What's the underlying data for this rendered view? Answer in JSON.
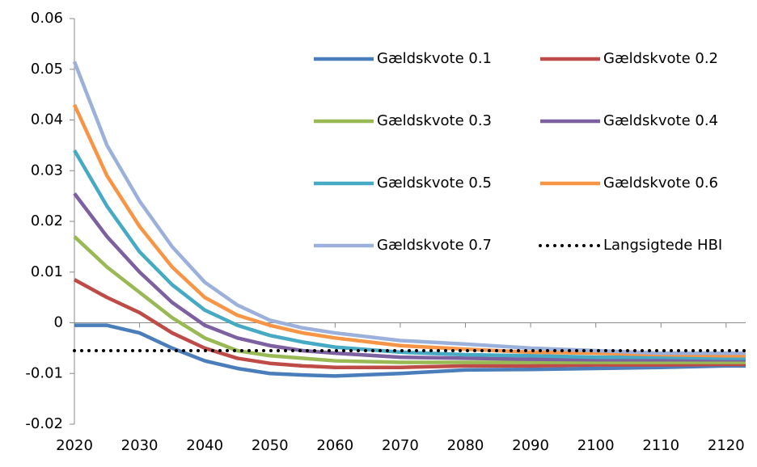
{
  "chart_data": {
    "type": "line",
    "x": [
      2020,
      2025,
      2030,
      2035,
      2040,
      2045,
      2050,
      2055,
      2060,
      2070,
      2080,
      2090,
      2100,
      2110,
      2120,
      2123
    ],
    "xlim": [
      2020,
      2123
    ],
    "xticks": [
      2020,
      2030,
      2040,
      2050,
      2060,
      2070,
      2080,
      2090,
      2100,
      2110,
      2120
    ],
    "ylim": [
      -0.02,
      0.06
    ],
    "yticks": [
      -0.02,
      -0.01,
      0,
      0.01,
      0.02,
      0.03,
      0.04,
      0.05,
      0.06
    ],
    "grid": false,
    "legend": "top-right",
    "series": [
      {
        "name": "Gældskvote 0.1",
        "color": "#4a7ebb",
        "values": [
          -0.0005,
          -0.0005,
          -0.002,
          -0.005,
          -0.0075,
          -0.009,
          -0.01,
          -0.0103,
          -0.0105,
          -0.01,
          -0.0093,
          -0.0092,
          -0.009,
          -0.0088,
          -0.0085,
          -0.0085
        ]
      },
      {
        "name": "Gældskvote 0.2",
        "color": "#be4b48",
        "values": [
          0.0085,
          0.005,
          0.002,
          -0.002,
          -0.005,
          -0.007,
          -0.008,
          -0.0085,
          -0.0088,
          -0.0088,
          -0.0085,
          -0.0085,
          -0.0083,
          -0.0083,
          -0.0082,
          -0.0082
        ]
      },
      {
        "name": "Gældskvote 0.3",
        "color": "#98b954",
        "values": [
          0.017,
          0.011,
          0.006,
          0.001,
          -0.003,
          -0.0055,
          -0.0065,
          -0.007,
          -0.0075,
          -0.0078,
          -0.0078,
          -0.0078,
          -0.0078,
          -0.0078,
          -0.0078,
          -0.0078
        ]
      },
      {
        "name": "Gældskvote 0.4",
        "color": "#7d60a0",
        "values": [
          0.0255,
          0.017,
          0.01,
          0.004,
          -0.0005,
          -0.003,
          -0.0045,
          -0.0055,
          -0.006,
          -0.0068,
          -0.007,
          -0.0072,
          -0.0073,
          -0.0073,
          -0.0073,
          -0.0073
        ]
      },
      {
        "name": "Gældskvote 0.5",
        "color": "#46aac5",
        "values": [
          0.034,
          0.023,
          0.014,
          0.0075,
          0.0025,
          -0.0005,
          -0.0025,
          -0.0038,
          -0.0048,
          -0.0058,
          -0.0063,
          -0.0065,
          -0.0068,
          -0.0068,
          -0.007,
          -0.007
        ]
      },
      {
        "name": "Gældskvote 0.6",
        "color": "#f69546",
        "values": [
          0.043,
          0.029,
          0.019,
          0.011,
          0.005,
          0.0015,
          -0.0005,
          -0.002,
          -0.003,
          -0.0045,
          -0.0052,
          -0.0058,
          -0.006,
          -0.0063,
          -0.0065,
          -0.0065
        ]
      },
      {
        "name": "Gældskvote 0.7",
        "color": "#9bb0da",
        "values": [
          0.0515,
          0.035,
          0.024,
          0.015,
          0.008,
          0.0035,
          0.0005,
          -0.001,
          -0.002,
          -0.0035,
          -0.0042,
          -0.005,
          -0.0055,
          -0.006,
          -0.006,
          -0.006
        ]
      },
      {
        "name": "Langsigtede HBI",
        "color": "#000000",
        "style": "dotted",
        "values": [
          -0.0055,
          -0.0055,
          -0.0055,
          -0.0055,
          -0.0055,
          -0.0055,
          -0.0055,
          -0.0055,
          -0.0055,
          -0.0055,
          -0.0055,
          -0.0055,
          -0.0055,
          -0.0055,
          -0.0055,
          -0.0055
        ]
      }
    ]
  }
}
